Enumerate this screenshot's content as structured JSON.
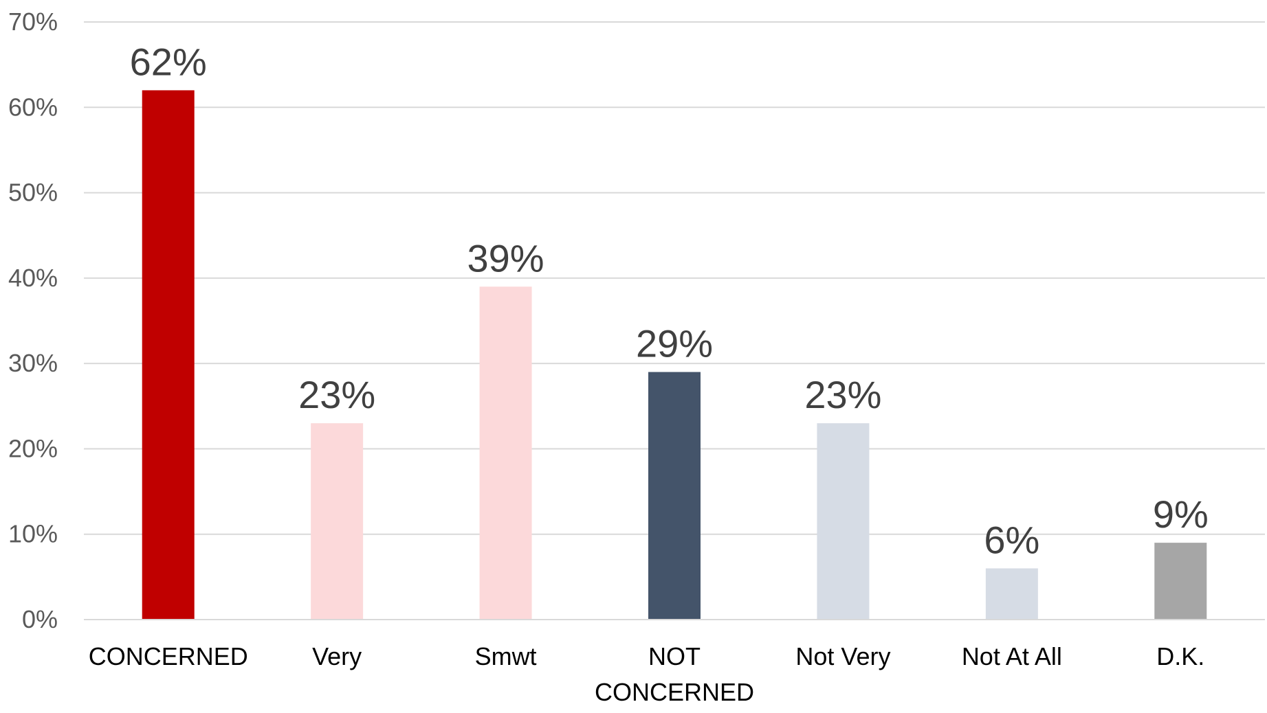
{
  "chart_data": {
    "type": "bar",
    "categories": [
      "CONCERNED",
      "Very",
      "Smwt",
      "NOT CONCERNED",
      "Not Very",
      "Not At All",
      "D.K."
    ],
    "category_lines": [
      [
        "CONCERNED"
      ],
      [
        "Very"
      ],
      [
        "Smwt"
      ],
      [
        "NOT",
        "CONCERNED"
      ],
      [
        "Not Very"
      ],
      [
        "Not At All"
      ],
      [
        "D.K."
      ]
    ],
    "values": [
      62,
      23,
      39,
      29,
      23,
      6,
      9
    ],
    "data_labels": [
      "62%",
      "23%",
      "39%",
      "29%",
      "23%",
      "6%",
      "9%"
    ],
    "bar_colors": [
      "#c00000",
      "#fcd9da",
      "#fcd9da",
      "#44546a",
      "#d6dce5",
      "#d6dce5",
      "#a6a6a6"
    ],
    "ylim": [
      0,
      70
    ],
    "yticks": [
      0,
      10,
      20,
      30,
      40,
      50,
      60,
      70
    ],
    "ytick_labels": [
      "0%",
      "10%",
      "20%",
      "30%",
      "40%",
      "50%",
      "60%",
      "70%"
    ],
    "grid": true,
    "legend": false,
    "title": "",
    "xlabel": "",
    "ylabel": ""
  }
}
